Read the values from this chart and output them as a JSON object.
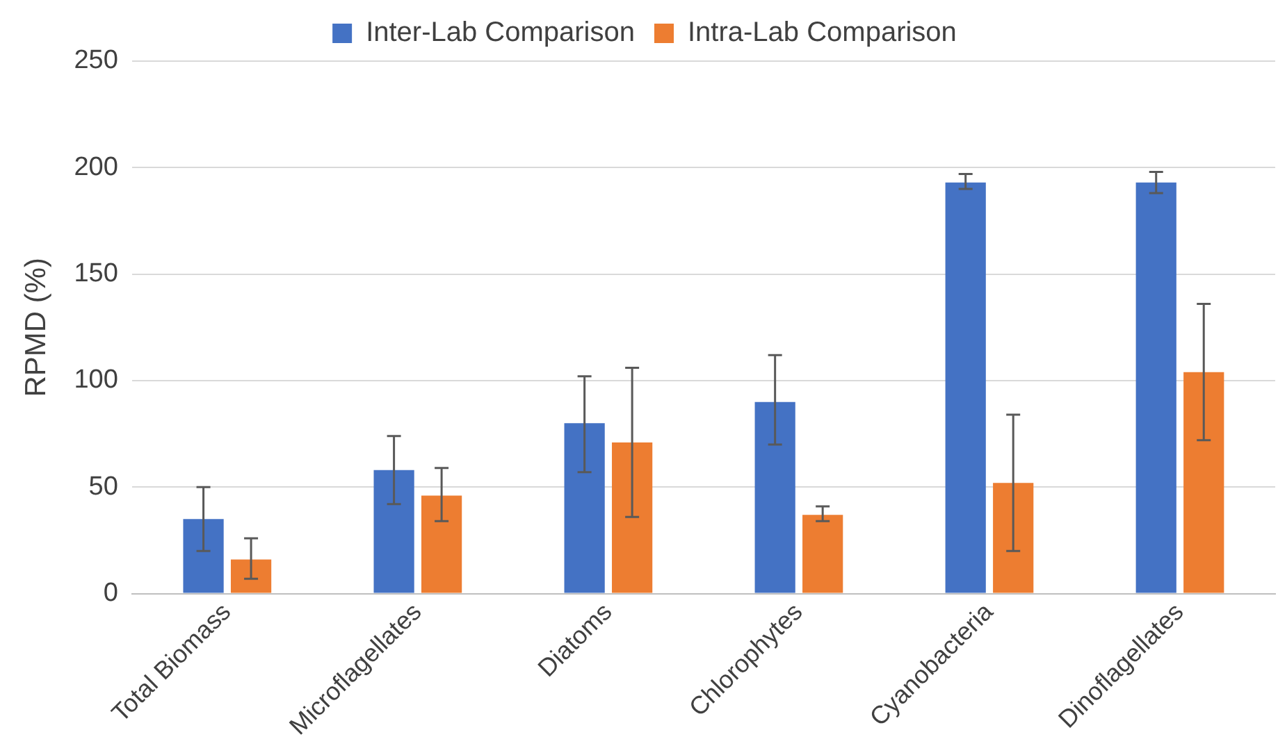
{
  "chart_data": {
    "type": "bar",
    "ylabel": "RPMD (%)",
    "categories": [
      "Total Biomass",
      "Microflagellates",
      "Diatoms",
      "Chlorophytes",
      "Cyanobacteria",
      "Dinoflagellates"
    ],
    "series": [
      {
        "name": "Inter-Lab Comparison",
        "color": "#4472c4",
        "values": [
          35,
          58,
          80,
          90,
          193,
          193
        ],
        "errors": [
          [
            20,
            50
          ],
          [
            42,
            74
          ],
          [
            57,
            102
          ],
          [
            70,
            112
          ],
          [
            190,
            197
          ],
          [
            188,
            198
          ]
        ]
      },
      {
        "name": "Intra-Lab Comparison",
        "color": "#ed7d31",
        "values": [
          16,
          46,
          71,
          37,
          52,
          104
        ],
        "errors": [
          [
            7,
            26
          ],
          [
            34,
            59
          ],
          [
            36,
            106
          ],
          [
            34,
            41
          ],
          [
            20,
            84
          ],
          [
            72,
            136
          ]
        ]
      }
    ],
    "ylim": [
      0,
      250
    ],
    "yticks": [
      0,
      50,
      100,
      150,
      200,
      250
    ],
    "grid": "y",
    "legend": "top"
  }
}
